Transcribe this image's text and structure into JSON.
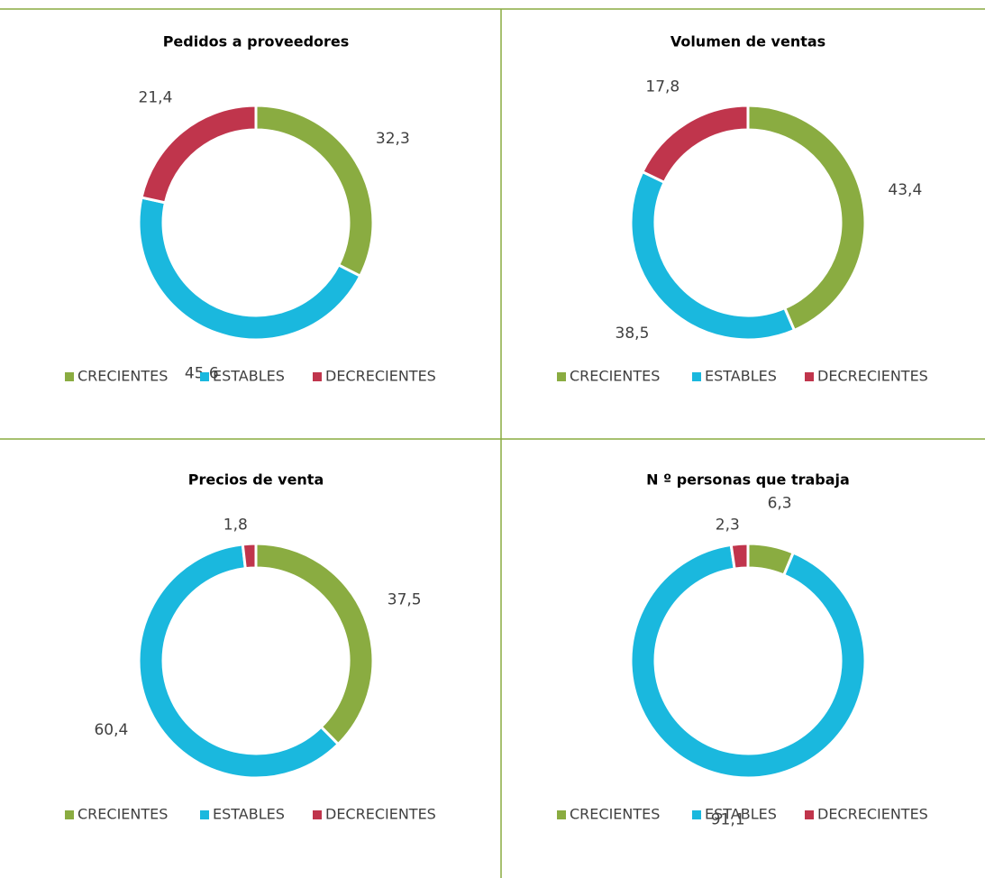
{
  "chart_data": [
    {
      "type": "donut",
      "title": "Pedidos a proveedores",
      "categories": [
        "CRECIENTES",
        "ESTABLES",
        "DECRECIENTES"
      ],
      "colors": [
        "#8aac41",
        "#1ab8de",
        "#c0354c"
      ],
      "values": [
        32.3,
        45.6,
        21.4
      ],
      "value_labels": [
        "32,3",
        "45,6",
        "21,4"
      ],
      "legend": "bottom"
    },
    {
      "type": "donut",
      "title": "Volumen de ventas",
      "categories": [
        "CRECIENTES",
        "ESTABLES",
        "DECRECIENTES"
      ],
      "colors": [
        "#8aac41",
        "#1ab8de",
        "#c0354c"
      ],
      "values": [
        43.4,
        38.5,
        17.8
      ],
      "value_labels": [
        "43,4",
        "38,5",
        "17,8"
      ],
      "legend": "bottom"
    },
    {
      "type": "donut",
      "title": "Precios de venta",
      "categories": [
        "CRECIENTES",
        "ESTABLES",
        "DECRECIENTES"
      ],
      "colors": [
        "#8aac41",
        "#1ab8de",
        "#c0354c"
      ],
      "values": [
        37.5,
        60.4,
        1.8
      ],
      "value_labels": [
        "37,5",
        "60,4",
        "1,8"
      ],
      "legend": "bottom"
    },
    {
      "type": "donut",
      "title": "N º personas que trabaja",
      "categories": [
        "CRECIENTES",
        "ESTABLES",
        "DECRECIENTES"
      ],
      "colors": [
        "#8aac41",
        "#1ab8de",
        "#c0354c"
      ],
      "values": [
        6.3,
        91.1,
        2.3
      ],
      "value_labels": [
        "6,3",
        "91,1",
        "2,3"
      ],
      "legend": "bottom"
    }
  ]
}
